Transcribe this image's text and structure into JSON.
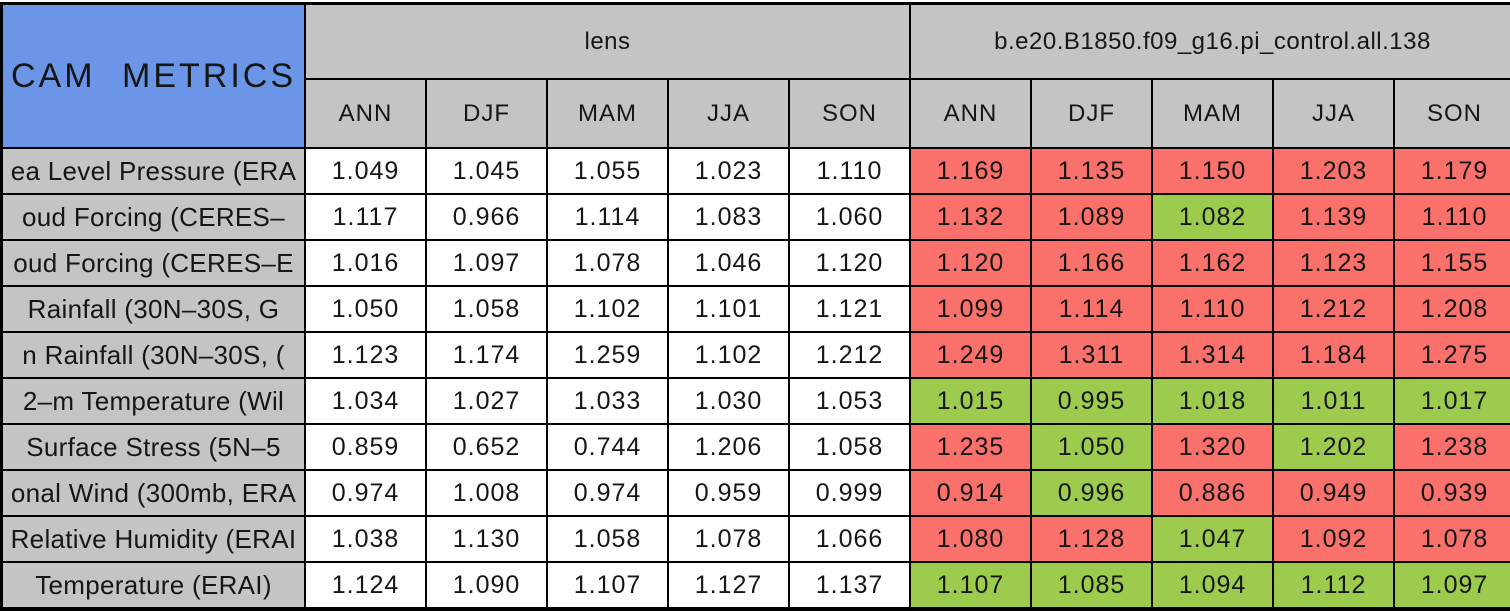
{
  "colors": {
    "title_bg": "#6B96E8",
    "header_bg": "#C4C4C4",
    "value_bg": "#FFFFFF",
    "worse_red": "#F9716A",
    "better_green": "#9CCB4E",
    "border": "#000000"
  },
  "chart_data": {
    "type": "table",
    "corner_title": "CAM METRICS",
    "column_groups": [
      {
        "label": "lens",
        "seasons": [
          "ANN",
          "DJF",
          "MAM",
          "JJA",
          "SON"
        ]
      },
      {
        "label": "b.e20.B1850.f09_g16.pi_control.all.138",
        "seasons": [
          "ANN",
          "DJF",
          "MAM",
          "JJA",
          "SON"
        ]
      }
    ],
    "status_legend": {
      "worse": "red",
      "better": "green"
    },
    "rows": [
      {
        "label": "ea Level Pressure (ERA",
        "lens": [
          "1.049",
          "1.045",
          "1.055",
          "1.023",
          "1.110"
        ],
        "control": [
          "1.169",
          "1.135",
          "1.150",
          "1.203",
          "1.179"
        ],
        "control_status": [
          "worse",
          "worse",
          "worse",
          "worse",
          "worse"
        ]
      },
      {
        "label": "oud Forcing (CERES–",
        "lens": [
          "1.117",
          "0.966",
          "1.114",
          "1.083",
          "1.060"
        ],
        "control": [
          "1.132",
          "1.089",
          "1.082",
          "1.139",
          "1.110"
        ],
        "control_status": [
          "worse",
          "worse",
          "better",
          "worse",
          "worse"
        ]
      },
      {
        "label": "oud Forcing (CERES–E",
        "lens": [
          "1.016",
          "1.097",
          "1.078",
          "1.046",
          "1.120"
        ],
        "control": [
          "1.120",
          "1.166",
          "1.162",
          "1.123",
          "1.155"
        ],
        "control_status": [
          "worse",
          "worse",
          "worse",
          "worse",
          "worse"
        ]
      },
      {
        "label": "Rainfall (30N–30S, G",
        "lens": [
          "1.050",
          "1.058",
          "1.102",
          "1.101",
          "1.121"
        ],
        "control": [
          "1.099",
          "1.114",
          "1.110",
          "1.212",
          "1.208"
        ],
        "control_status": [
          "worse",
          "worse",
          "worse",
          "worse",
          "worse"
        ]
      },
      {
        "label": "n Rainfall (30N–30S, (",
        "lens": [
          "1.123",
          "1.174",
          "1.259",
          "1.102",
          "1.212"
        ],
        "control": [
          "1.249",
          "1.311",
          "1.314",
          "1.184",
          "1.275"
        ],
        "control_status": [
          "worse",
          "worse",
          "worse",
          "worse",
          "worse"
        ]
      },
      {
        "label": "2–m Temperature (Wil",
        "lens": [
          "1.034",
          "1.027",
          "1.033",
          "1.030",
          "1.053"
        ],
        "control": [
          "1.015",
          "0.995",
          "1.018",
          "1.011",
          "1.017"
        ],
        "control_status": [
          "better",
          "better",
          "better",
          "better",
          "better"
        ]
      },
      {
        "label": "Surface Stress (5N–5",
        "lens": [
          "0.859",
          "0.652",
          "0.744",
          "1.206",
          "1.058"
        ],
        "control": [
          "1.235",
          "1.050",
          "1.320",
          "1.202",
          "1.238"
        ],
        "control_status": [
          "worse",
          "better",
          "worse",
          "better",
          "worse"
        ]
      },
      {
        "label": "onal Wind (300mb, ERA",
        "lens": [
          "0.974",
          "1.008",
          "0.974",
          "0.959",
          "0.999"
        ],
        "control": [
          "0.914",
          "0.996",
          "0.886",
          "0.949",
          "0.939"
        ],
        "control_status": [
          "worse",
          "better",
          "worse",
          "worse",
          "worse"
        ]
      },
      {
        "label": "Relative Humidity (ERAI",
        "lens": [
          "1.038",
          "1.130",
          "1.058",
          "1.078",
          "1.066"
        ],
        "control": [
          "1.080",
          "1.128",
          "1.047",
          "1.092",
          "1.078"
        ],
        "control_status": [
          "worse",
          "worse",
          "better",
          "worse",
          "worse"
        ]
      },
      {
        "label": "Temperature (ERAI)",
        "lens": [
          "1.124",
          "1.090",
          "1.107",
          "1.127",
          "1.137"
        ],
        "control": [
          "1.107",
          "1.085",
          "1.094",
          "1.112",
          "1.097"
        ],
        "control_status": [
          "better",
          "better",
          "better",
          "better",
          "better"
        ]
      }
    ]
  }
}
